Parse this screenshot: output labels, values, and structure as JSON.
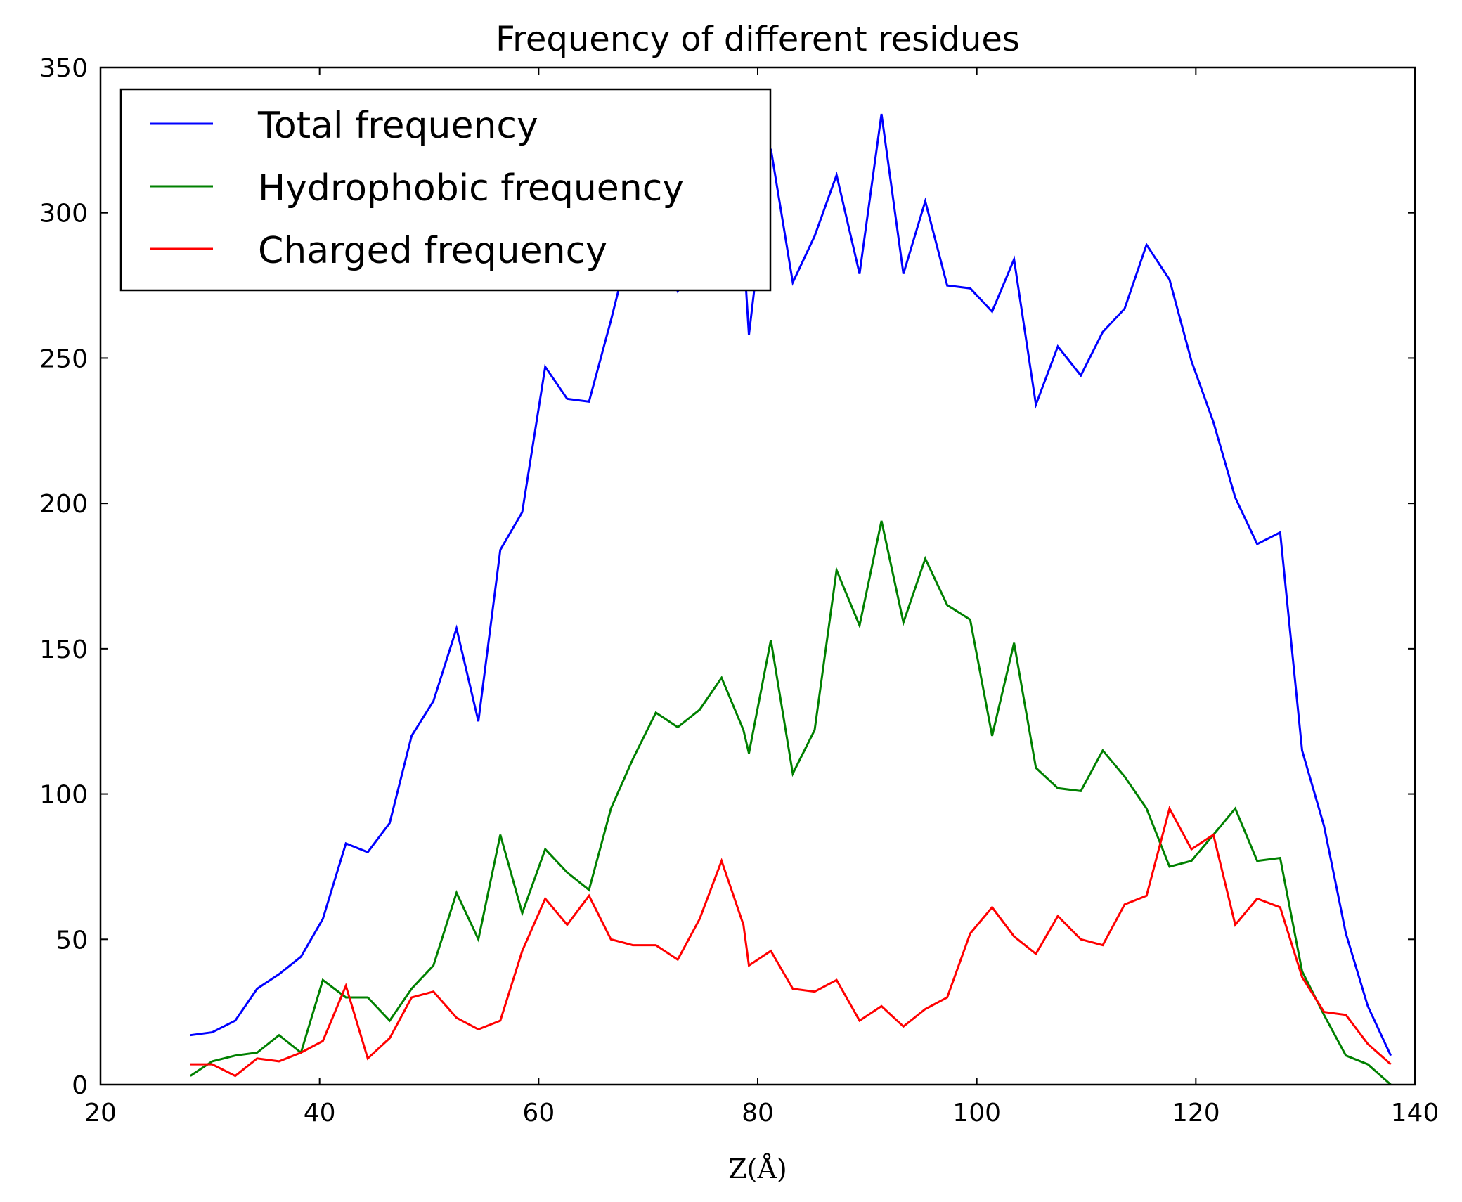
{
  "chart_data": {
    "type": "line",
    "title": "Frequency of different residues",
    "xlabel": "Z(Å)",
    "ylabel": "",
    "xlim": [
      20,
      140
    ],
    "ylim": [
      0,
      350
    ],
    "x_ticks": [
      20,
      40,
      60,
      80,
      100,
      120,
      140
    ],
    "y_ticks": [
      0,
      50,
      100,
      150,
      200,
      250,
      300,
      350
    ],
    "grid": false,
    "legend_position": "top-left",
    "x": [
      28.2,
      30.2,
      32.3,
      34.3,
      36.3,
      38.3,
      40.3,
      42.4,
      44.4,
      46.4,
      48.4,
      50.4,
      52.5,
      54.5,
      56.5,
      58.5,
      60.6,
      62.6,
      64.6,
      66.6,
      68.6,
      70.7,
      72.7,
      74.7,
      76.7,
      78.7,
      79.2,
      81.2,
      83.2,
      85.2,
      87.2,
      89.3,
      91.3,
      93.3,
      95.3,
      97.3,
      99.4,
      101.4,
      103.4,
      105.4,
      107.4,
      109.5,
      111.5,
      113.5,
      115.5,
      117.6,
      119.6,
      121.6,
      123.6,
      125.6,
      127.7,
      129.7,
      131.7,
      133.7,
      135.7,
      137.8
    ],
    "series": [
      {
        "name": "Total frequency",
        "color": "#0000ff",
        "values": [
          17,
          18,
          22,
          33,
          38,
          44,
          57,
          83,
          80,
          90,
          120,
          132,
          157,
          125,
          184,
          197,
          247,
          236,
          235,
          263,
          293,
          290,
          273,
          285,
          300,
          288,
          258,
          322,
          276,
          292,
          313,
          279,
          334,
          279,
          304,
          275,
          274,
          266,
          284,
          234,
          254,
          244,
          259,
          267,
          289,
          277,
          249,
          228,
          202,
          186,
          190,
          115,
          89,
          52,
          27,
          10
        ]
      },
      {
        "name": "Hydrophobic frequency",
        "color": "#008000",
        "values": [
          3,
          8,
          10,
          11,
          17,
          11,
          36,
          30,
          30,
          22,
          33,
          41,
          66,
          50,
          86,
          59,
          81,
          73,
          67,
          95,
          112,
          128,
          123,
          129,
          140,
          122,
          114,
          153,
          107,
          122,
          177,
          158,
          194,
          159,
          181,
          165,
          160,
          120,
          152,
          109,
          102,
          101,
          115,
          106,
          95,
          75,
          77,
          86,
          95,
          77,
          78,
          39,
          24,
          10,
          7,
          0
        ]
      },
      {
        "name": "Charged frequency",
        "color": "#ff0000",
        "values": [
          7,
          7,
          3,
          9,
          8,
          11,
          15,
          34,
          9,
          16,
          30,
          32,
          23,
          19,
          22,
          46,
          64,
          55,
          65,
          50,
          48,
          48,
          43,
          57,
          77,
          55,
          41,
          46,
          33,
          32,
          36,
          22,
          27,
          20,
          26,
          30,
          52,
          61,
          51,
          45,
          58,
          50,
          48,
          62,
          65,
          95,
          81,
          86,
          55,
          64,
          61,
          37,
          25,
          24,
          14,
          7
        ]
      }
    ]
  }
}
